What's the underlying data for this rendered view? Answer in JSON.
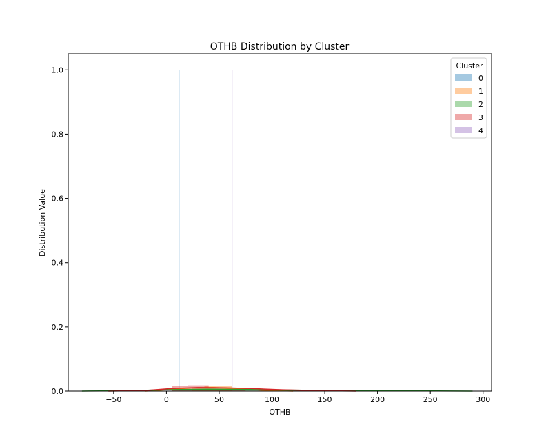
{
  "chart_data": {
    "type": "histogram+kde",
    "title": "OTHB Distribution by Cluster",
    "xlabel": "OTHB",
    "ylabel": "Distribution Value",
    "xlim": [
      -93,
      308
    ],
    "ylim": [
      0,
      1.05
    ],
    "xticks": [
      -50,
      0,
      50,
      100,
      150,
      200,
      250,
      300
    ],
    "xtick_labels": [
      "−50",
      "0",
      "50",
      "100",
      "150",
      "200",
      "250",
      "300"
    ],
    "yticks": [
      0.0,
      0.2,
      0.4,
      0.6,
      0.8,
      1.0
    ],
    "ytick_labels": [
      "0.0",
      "0.2",
      "0.4",
      "0.6",
      "0.8",
      "1.0"
    ],
    "grid": false,
    "legend": {
      "title": "Cluster",
      "placement": "top-right"
    },
    "series": [
      {
        "name": "0",
        "color": "#1f77b4",
        "bars": [
          {
            "x0": 11.8,
            "x1": 12.4,
            "h": 1.0
          }
        ],
        "kde": []
      },
      {
        "name": "1",
        "color": "#ff7f0e",
        "bars": [
          {
            "x0": 24,
            "x1": 36,
            "h": 0.011
          },
          {
            "x0": 36,
            "x1": 48,
            "h": 0.016
          },
          {
            "x0": 48,
            "x1": 62,
            "h": 0.015
          }
        ],
        "kde": [
          [
            -20,
            0
          ],
          [
            0,
            0.004
          ],
          [
            25,
            0.01
          ],
          [
            45,
            0.011
          ],
          [
            65,
            0.008
          ],
          [
            90,
            0.003
          ],
          [
            120,
            0
          ]
        ]
      },
      {
        "name": "2",
        "color": "#2ca02c",
        "bars": [
          {
            "x0": 5,
            "x1": 45,
            "h": 0.006
          },
          {
            "x0": 45,
            "x1": 85,
            "h": 0.005
          },
          {
            "x0": 85,
            "x1": 125,
            "h": 0.003
          },
          {
            "x0": 125,
            "x1": 165,
            "h": 0.0015
          },
          {
            "x0": 165,
            "x1": 205,
            "h": 0.001
          },
          {
            "x0": 205,
            "x1": 245,
            "h": 0.0008
          },
          {
            "x0": 245,
            "x1": 285,
            "h": 0.0005
          }
        ],
        "kde": [
          [
            -80,
            0
          ],
          [
            -40,
            0.001
          ],
          [
            0,
            0.004
          ],
          [
            40,
            0.006
          ],
          [
            80,
            0.005
          ],
          [
            120,
            0.003
          ],
          [
            160,
            0.0015
          ],
          [
            200,
            0.001
          ],
          [
            250,
            0.0006
          ],
          [
            290,
            0
          ]
        ]
      },
      {
        "name": "3",
        "color": "#d62728",
        "bars": [
          {
            "x0": 5,
            "x1": 20,
            "h": 0.017
          },
          {
            "x0": 20,
            "x1": 40,
            "h": 0.018
          },
          {
            "x0": 40,
            "x1": 75,
            "h": 0.01
          }
        ],
        "kde": [
          [
            -55,
            0
          ],
          [
            -20,
            0.002
          ],
          [
            5,
            0.008
          ],
          [
            30,
            0.011
          ],
          [
            55,
            0.01
          ],
          [
            80,
            0.008
          ],
          [
            110,
            0.004
          ],
          [
            150,
            0.001
          ],
          [
            180,
            0
          ]
        ]
      },
      {
        "name": "4",
        "color": "#9467bd",
        "bars": [
          {
            "x0": 62.0,
            "x1": 62.6,
            "h": 1.0
          }
        ],
        "kde": []
      }
    ]
  }
}
